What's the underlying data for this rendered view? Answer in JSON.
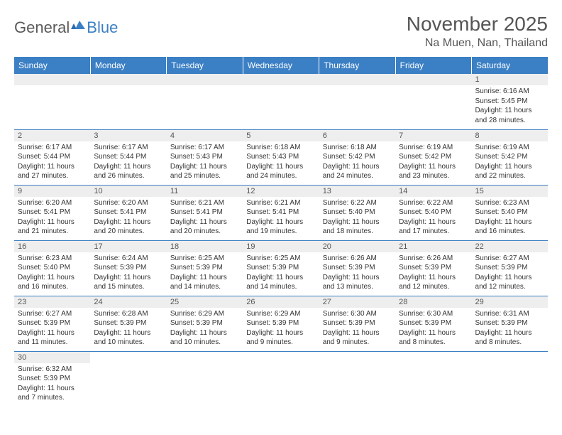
{
  "logo": {
    "text1": "General",
    "text2": "Blue"
  },
  "title": "November 2025",
  "location": "Na Muen, Nan, Thailand",
  "colors": {
    "header_bg": "#3b7fc4",
    "header_text": "#ffffff",
    "daybar_bg": "#eeeeee",
    "border": "#3b7fc4",
    "title_color": "#555555"
  },
  "weekdays": [
    "Sunday",
    "Monday",
    "Tuesday",
    "Wednesday",
    "Thursday",
    "Friday",
    "Saturday"
  ],
  "weeks": [
    [
      null,
      null,
      null,
      null,
      null,
      null,
      {
        "n": "1",
        "sr": "6:16 AM",
        "ss": "5:45 PM",
        "dl": "11 hours and 28 minutes."
      }
    ],
    [
      {
        "n": "2",
        "sr": "6:17 AM",
        "ss": "5:44 PM",
        "dl": "11 hours and 27 minutes."
      },
      {
        "n": "3",
        "sr": "6:17 AM",
        "ss": "5:44 PM",
        "dl": "11 hours and 26 minutes."
      },
      {
        "n": "4",
        "sr": "6:17 AM",
        "ss": "5:43 PM",
        "dl": "11 hours and 25 minutes."
      },
      {
        "n": "5",
        "sr": "6:18 AM",
        "ss": "5:43 PM",
        "dl": "11 hours and 24 minutes."
      },
      {
        "n": "6",
        "sr": "6:18 AM",
        "ss": "5:42 PM",
        "dl": "11 hours and 24 minutes."
      },
      {
        "n": "7",
        "sr": "6:19 AM",
        "ss": "5:42 PM",
        "dl": "11 hours and 23 minutes."
      },
      {
        "n": "8",
        "sr": "6:19 AM",
        "ss": "5:42 PM",
        "dl": "11 hours and 22 minutes."
      }
    ],
    [
      {
        "n": "9",
        "sr": "6:20 AM",
        "ss": "5:41 PM",
        "dl": "11 hours and 21 minutes."
      },
      {
        "n": "10",
        "sr": "6:20 AM",
        "ss": "5:41 PM",
        "dl": "11 hours and 20 minutes."
      },
      {
        "n": "11",
        "sr": "6:21 AM",
        "ss": "5:41 PM",
        "dl": "11 hours and 20 minutes."
      },
      {
        "n": "12",
        "sr": "6:21 AM",
        "ss": "5:41 PM",
        "dl": "11 hours and 19 minutes."
      },
      {
        "n": "13",
        "sr": "6:22 AM",
        "ss": "5:40 PM",
        "dl": "11 hours and 18 minutes."
      },
      {
        "n": "14",
        "sr": "6:22 AM",
        "ss": "5:40 PM",
        "dl": "11 hours and 17 minutes."
      },
      {
        "n": "15",
        "sr": "6:23 AM",
        "ss": "5:40 PM",
        "dl": "11 hours and 16 minutes."
      }
    ],
    [
      {
        "n": "16",
        "sr": "6:23 AM",
        "ss": "5:40 PM",
        "dl": "11 hours and 16 minutes."
      },
      {
        "n": "17",
        "sr": "6:24 AM",
        "ss": "5:39 PM",
        "dl": "11 hours and 15 minutes."
      },
      {
        "n": "18",
        "sr": "6:25 AM",
        "ss": "5:39 PM",
        "dl": "11 hours and 14 minutes."
      },
      {
        "n": "19",
        "sr": "6:25 AM",
        "ss": "5:39 PM",
        "dl": "11 hours and 14 minutes."
      },
      {
        "n": "20",
        "sr": "6:26 AM",
        "ss": "5:39 PM",
        "dl": "11 hours and 13 minutes."
      },
      {
        "n": "21",
        "sr": "6:26 AM",
        "ss": "5:39 PM",
        "dl": "11 hours and 12 minutes."
      },
      {
        "n": "22",
        "sr": "6:27 AM",
        "ss": "5:39 PM",
        "dl": "11 hours and 12 minutes."
      }
    ],
    [
      {
        "n": "23",
        "sr": "6:27 AM",
        "ss": "5:39 PM",
        "dl": "11 hours and 11 minutes."
      },
      {
        "n": "24",
        "sr": "6:28 AM",
        "ss": "5:39 PM",
        "dl": "11 hours and 10 minutes."
      },
      {
        "n": "25",
        "sr": "6:29 AM",
        "ss": "5:39 PM",
        "dl": "11 hours and 10 minutes."
      },
      {
        "n": "26",
        "sr": "6:29 AM",
        "ss": "5:39 PM",
        "dl": "11 hours and 9 minutes."
      },
      {
        "n": "27",
        "sr": "6:30 AM",
        "ss": "5:39 PM",
        "dl": "11 hours and 9 minutes."
      },
      {
        "n": "28",
        "sr": "6:30 AM",
        "ss": "5:39 PM",
        "dl": "11 hours and 8 minutes."
      },
      {
        "n": "29",
        "sr": "6:31 AM",
        "ss": "5:39 PM",
        "dl": "11 hours and 8 minutes."
      }
    ],
    [
      {
        "n": "30",
        "sr": "6:32 AM",
        "ss": "5:39 PM",
        "dl": "11 hours and 7 minutes."
      },
      null,
      null,
      null,
      null,
      null,
      null
    ]
  ],
  "labels": {
    "sunrise": "Sunrise:",
    "sunset": "Sunset:",
    "daylight": "Daylight:"
  }
}
